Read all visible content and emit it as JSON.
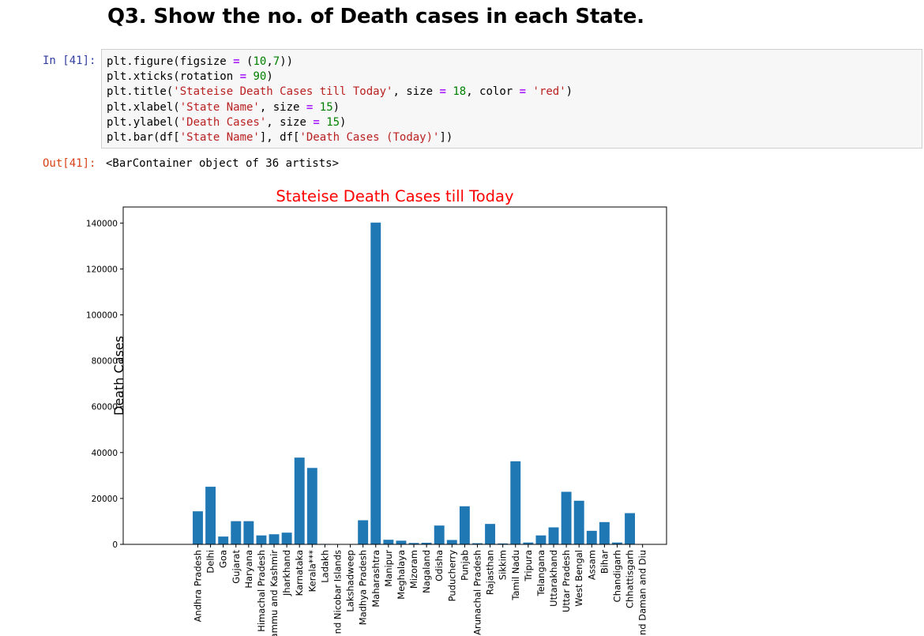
{
  "heading": "Q3. Show the no. of Death cases in each State.",
  "cell": {
    "in_prompt": "In [41]:",
    "out_prompt": "Out[41]:",
    "code_lines": [
      [
        {
          "t": "plt.figure(figsize "
        },
        {
          "t": "=",
          "c": "op"
        },
        {
          "t": " ("
        },
        {
          "t": "10",
          "c": "num"
        },
        {
          "t": ","
        },
        {
          "t": "7",
          "c": "num"
        },
        {
          "t": "))"
        }
      ],
      [
        {
          "t": "plt.xticks(rotation "
        },
        {
          "t": "=",
          "c": "op"
        },
        {
          "t": " "
        },
        {
          "t": "90",
          "c": "num"
        },
        {
          "t": ")"
        }
      ],
      [
        {
          "t": "plt.title("
        },
        {
          "t": "'Stateise Death Cases till Today'",
          "c": "str"
        },
        {
          "t": ", size "
        },
        {
          "t": "=",
          "c": "op"
        },
        {
          "t": " "
        },
        {
          "t": "18",
          "c": "num"
        },
        {
          "t": ", color "
        },
        {
          "t": "=",
          "c": "op"
        },
        {
          "t": " "
        },
        {
          "t": "'red'",
          "c": "str"
        },
        {
          "t": ")"
        }
      ],
      [
        {
          "t": "plt.xlabel("
        },
        {
          "t": "'State Name'",
          "c": "str"
        },
        {
          "t": ", size "
        },
        {
          "t": "=",
          "c": "op"
        },
        {
          "t": " "
        },
        {
          "t": "15",
          "c": "num"
        },
        {
          "t": ")"
        }
      ],
      [
        {
          "t": "plt.ylabel("
        },
        {
          "t": "'Death Cases'",
          "c": "str"
        },
        {
          "t": ", size "
        },
        {
          "t": "=",
          "c": "op"
        },
        {
          "t": " "
        },
        {
          "t": "15",
          "c": "num"
        },
        {
          "t": ")"
        }
      ],
      [
        {
          "t": "plt.bar(df["
        },
        {
          "t": "'State Name'",
          "c": "str"
        },
        {
          "t": "], df["
        },
        {
          "t": "'Death Cases (Today)'",
          "c": "str"
        },
        {
          "t": "])"
        }
      ]
    ],
    "output_text": "<BarContainer object of 36 artists>"
  },
  "chart_data": {
    "type": "bar",
    "title": "Stateise Death Cases till Today",
    "title_color": "#ff0000",
    "bar_color": "#1f77b4",
    "xlabel": "",
    "ylabel": "Death Cases",
    "ylim": [
      0,
      147000
    ],
    "yticks": [
      0,
      20000,
      40000,
      60000,
      80000,
      100000,
      120000,
      140000
    ],
    "categories": [
      "Andhra Pradesh",
      "Delhi",
      "Goa",
      "Gujarat",
      "Haryana",
      "Himachal Pradesh",
      "ammu and Kashmir",
      "Jharkhand",
      "Karnataka",
      "Kerala***",
      "Ladakh",
      "nd Nicobar Islands",
      "Lakshadweep",
      "Madhya Pradesh",
      "Maharashtra",
      "Manipur",
      "Meghalaya",
      "Mizoram",
      "Nagaland",
      "Odisha",
      "Puducherry",
      "Punjab",
      "Arunachal Pradesh",
      "Rajasthan",
      "Sikkim",
      "Tamil Nadu",
      "Tripura",
      "Telangana",
      "Uttarakhand",
      "Uttar Pradesh",
      "West Bengal",
      "Assam",
      "Bihar",
      "Chandigarh",
      "Chhattisgarh",
      "nd Daman and Diu"
    ],
    "values": [
      14400,
      25100,
      3400,
      10100,
      10100,
      3900,
      4400,
      5100,
      37800,
      33300,
      200,
      130,
      50,
      10500,
      140200,
      2000,
      1600,
      600,
      700,
      8200,
      1900,
      16600,
      500,
      8900,
      400,
      36200,
      800,
      3900,
      7400,
      22900,
      19000,
      5900,
      9700,
      800,
      13600,
      40
    ]
  }
}
